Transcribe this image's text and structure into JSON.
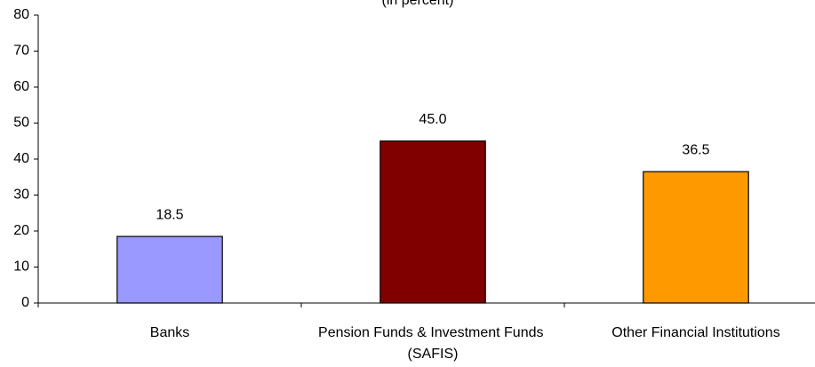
{
  "chart_data": {
    "type": "bar",
    "title": "(in percent)",
    "categories": [
      "Banks",
      "Pension Funds & Investment Funds (SAFIS)",
      "Other Financial Institutions"
    ],
    "values": [
      18.5,
      45.0,
      36.5
    ],
    "value_labels": [
      "18.5",
      "45.0",
      "36.5"
    ],
    "colors": [
      "#9999ff",
      "#800000",
      "#ff9900"
    ],
    "ylim": [
      0,
      80
    ],
    "yticks": [
      0,
      10,
      20,
      30,
      40,
      50,
      60,
      70,
      80
    ],
    "grid": false
  }
}
